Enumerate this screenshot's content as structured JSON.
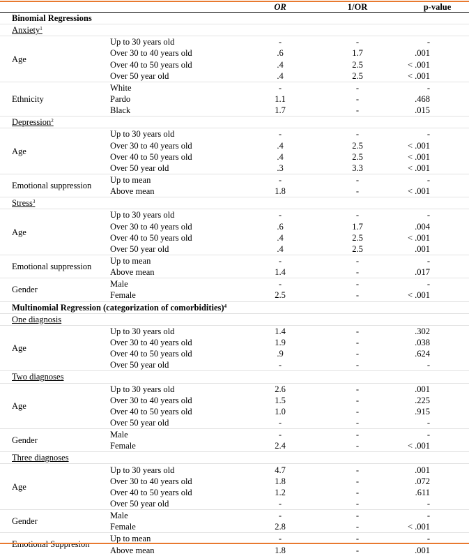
{
  "header": {
    "columns": [
      "OR",
      "1/OR",
      "p-value"
    ]
  },
  "sections": [
    {
      "title": "Binomial Regressions",
      "outcomes": [
        {
          "name": "Anxiety",
          "note": "1",
          "variables": [
            {
              "name": "Age",
              "rows": [
                [
                  "Up to 30 years old",
                  "-",
                  "-",
                  "-"
                ],
                [
                  "Over 30 to 40 years old",
                  ".6",
                  "1.7",
                  ".001"
                ],
                [
                  "Over 40 to 50 years old",
                  ".4",
                  "2.5",
                  "< .001"
                ],
                [
                  "Over 50 year old",
                  ".4",
                  "2.5",
                  "< .001"
                ]
              ]
            },
            {
              "name": "Ethnicity",
              "rows": [
                [
                  "White",
                  "-",
                  "-",
                  "-"
                ],
                [
                  "Pardo",
                  "1.1",
                  "-",
                  ".468"
                ],
                [
                  "Black",
                  "1.7",
                  "-",
                  ".015"
                ]
              ]
            }
          ]
        },
        {
          "name": "Depression",
          "note": "2",
          "variables": [
            {
              "name": "Age",
              "rows": [
                [
                  "Up to 30 years old",
                  "-",
                  "-",
                  "-"
                ],
                [
                  "Over 30 to 40 years old",
                  ".4",
                  "2.5",
                  "< .001"
                ],
                [
                  "Over 40 to 50 years old",
                  ".4",
                  "2.5",
                  "< .001"
                ],
                [
                  "Over 50 year old",
                  ".3",
                  "3.3",
                  "< .001"
                ]
              ]
            },
            {
              "name": "Emotional suppression",
              "rows": [
                [
                  "Up to mean",
                  "-",
                  "-",
                  "-"
                ],
                [
                  "Above mean",
                  "1.8",
                  "-",
                  "< .001"
                ]
              ]
            }
          ]
        },
        {
          "name": "Stress",
          "note": "3",
          "variables": [
            {
              "name": "Age",
              "rows": [
                [
                  "Up to 30 years old",
                  "-",
                  "-",
                  "-"
                ],
                [
                  "Over 30 to 40 years old",
                  ".6",
                  "1.7",
                  ".004"
                ],
                [
                  "Over 40 to 50 years old",
                  ".4",
                  "2.5",
                  "< .001"
                ],
                [
                  "Over 50 year old",
                  ".4",
                  "2.5",
                  ".001"
                ]
              ]
            },
            {
              "name": "Emotional suppression",
              "rows": [
                [
                  "Up to mean",
                  "-",
                  "-",
                  "-"
                ],
                [
                  "Above mean",
                  "1.4",
                  "-",
                  ".017"
                ]
              ]
            },
            {
              "name": "Gender",
              "rows": [
                [
                  "Male",
                  "-",
                  "-",
                  "-"
                ],
                [
                  "Female",
                  "2.5",
                  "-",
                  "< .001"
                ]
              ]
            }
          ]
        }
      ]
    },
    {
      "title": "Multinomial Regression (categorization of comorbidities)",
      "note": "4",
      "outcomes": [
        {
          "name": "One diagnosis",
          "variables": [
            {
              "name": "Age",
              "rows": [
                [
                  "Up to 30 years old",
                  "1.4",
                  "-",
                  ".302"
                ],
                [
                  "Over 30 to 40 years old",
                  "1.9",
                  "-",
                  ".038"
                ],
                [
                  "Over 40 to 50 years old",
                  ".9",
                  "-",
                  ".624"
                ],
                [
                  "Over 50 year old",
                  "-",
                  "-",
                  "-"
                ]
              ]
            }
          ]
        },
        {
          "name": "Two diagnoses",
          "variables": [
            {
              "name": "Age",
              "rows": [
                [
                  "Up to 30 years old",
                  "2.6",
                  "-",
                  ".001"
                ],
                [
                  "Over 30 to 40 years old",
                  "1.5",
                  "-",
                  ".225"
                ],
                [
                  "Over 40 to 50 years old",
                  "1.0",
                  "-",
                  ".915"
                ],
                [
                  "Over 50 year old",
                  "-",
                  "-",
                  "-"
                ]
              ]
            },
            {
              "name": "Gender",
              "rows": [
                [
                  "Male",
                  "-",
                  "-",
                  "-"
                ],
                [
                  "Female",
                  "2.4",
                  "-",
                  "< .001"
                ]
              ]
            }
          ]
        },
        {
          "name": "Three diagnoses",
          "variables": [
            {
              "name": "Age",
              "rows": [
                [
                  "Up to 30 years old",
                  "4.7",
                  "-",
                  ".001"
                ],
                [
                  "Over 30 to 40 years old",
                  "1.8",
                  "-",
                  ".072"
                ],
                [
                  "Over 40 to 50 years old",
                  "1.2",
                  "-",
                  ".611"
                ],
                [
                  "Over 50 year old",
                  "-",
                  "-",
                  "-"
                ]
              ]
            },
            {
              "name": "Gender",
              "rows": [
                [
                  "Male",
                  "-",
                  "-",
                  "-"
                ],
                [
                  "Female",
                  "2.8",
                  "-",
                  "< .001"
                ]
              ]
            },
            {
              "name": "Emotional Suppresion",
              "rows": [
                [
                  "Up to mean",
                  "-",
                  "-",
                  "-"
                ],
                [
                  "Above mean",
                  "1.8",
                  "-",
                  ".001"
                ]
              ]
            }
          ]
        }
      ]
    }
  ]
}
